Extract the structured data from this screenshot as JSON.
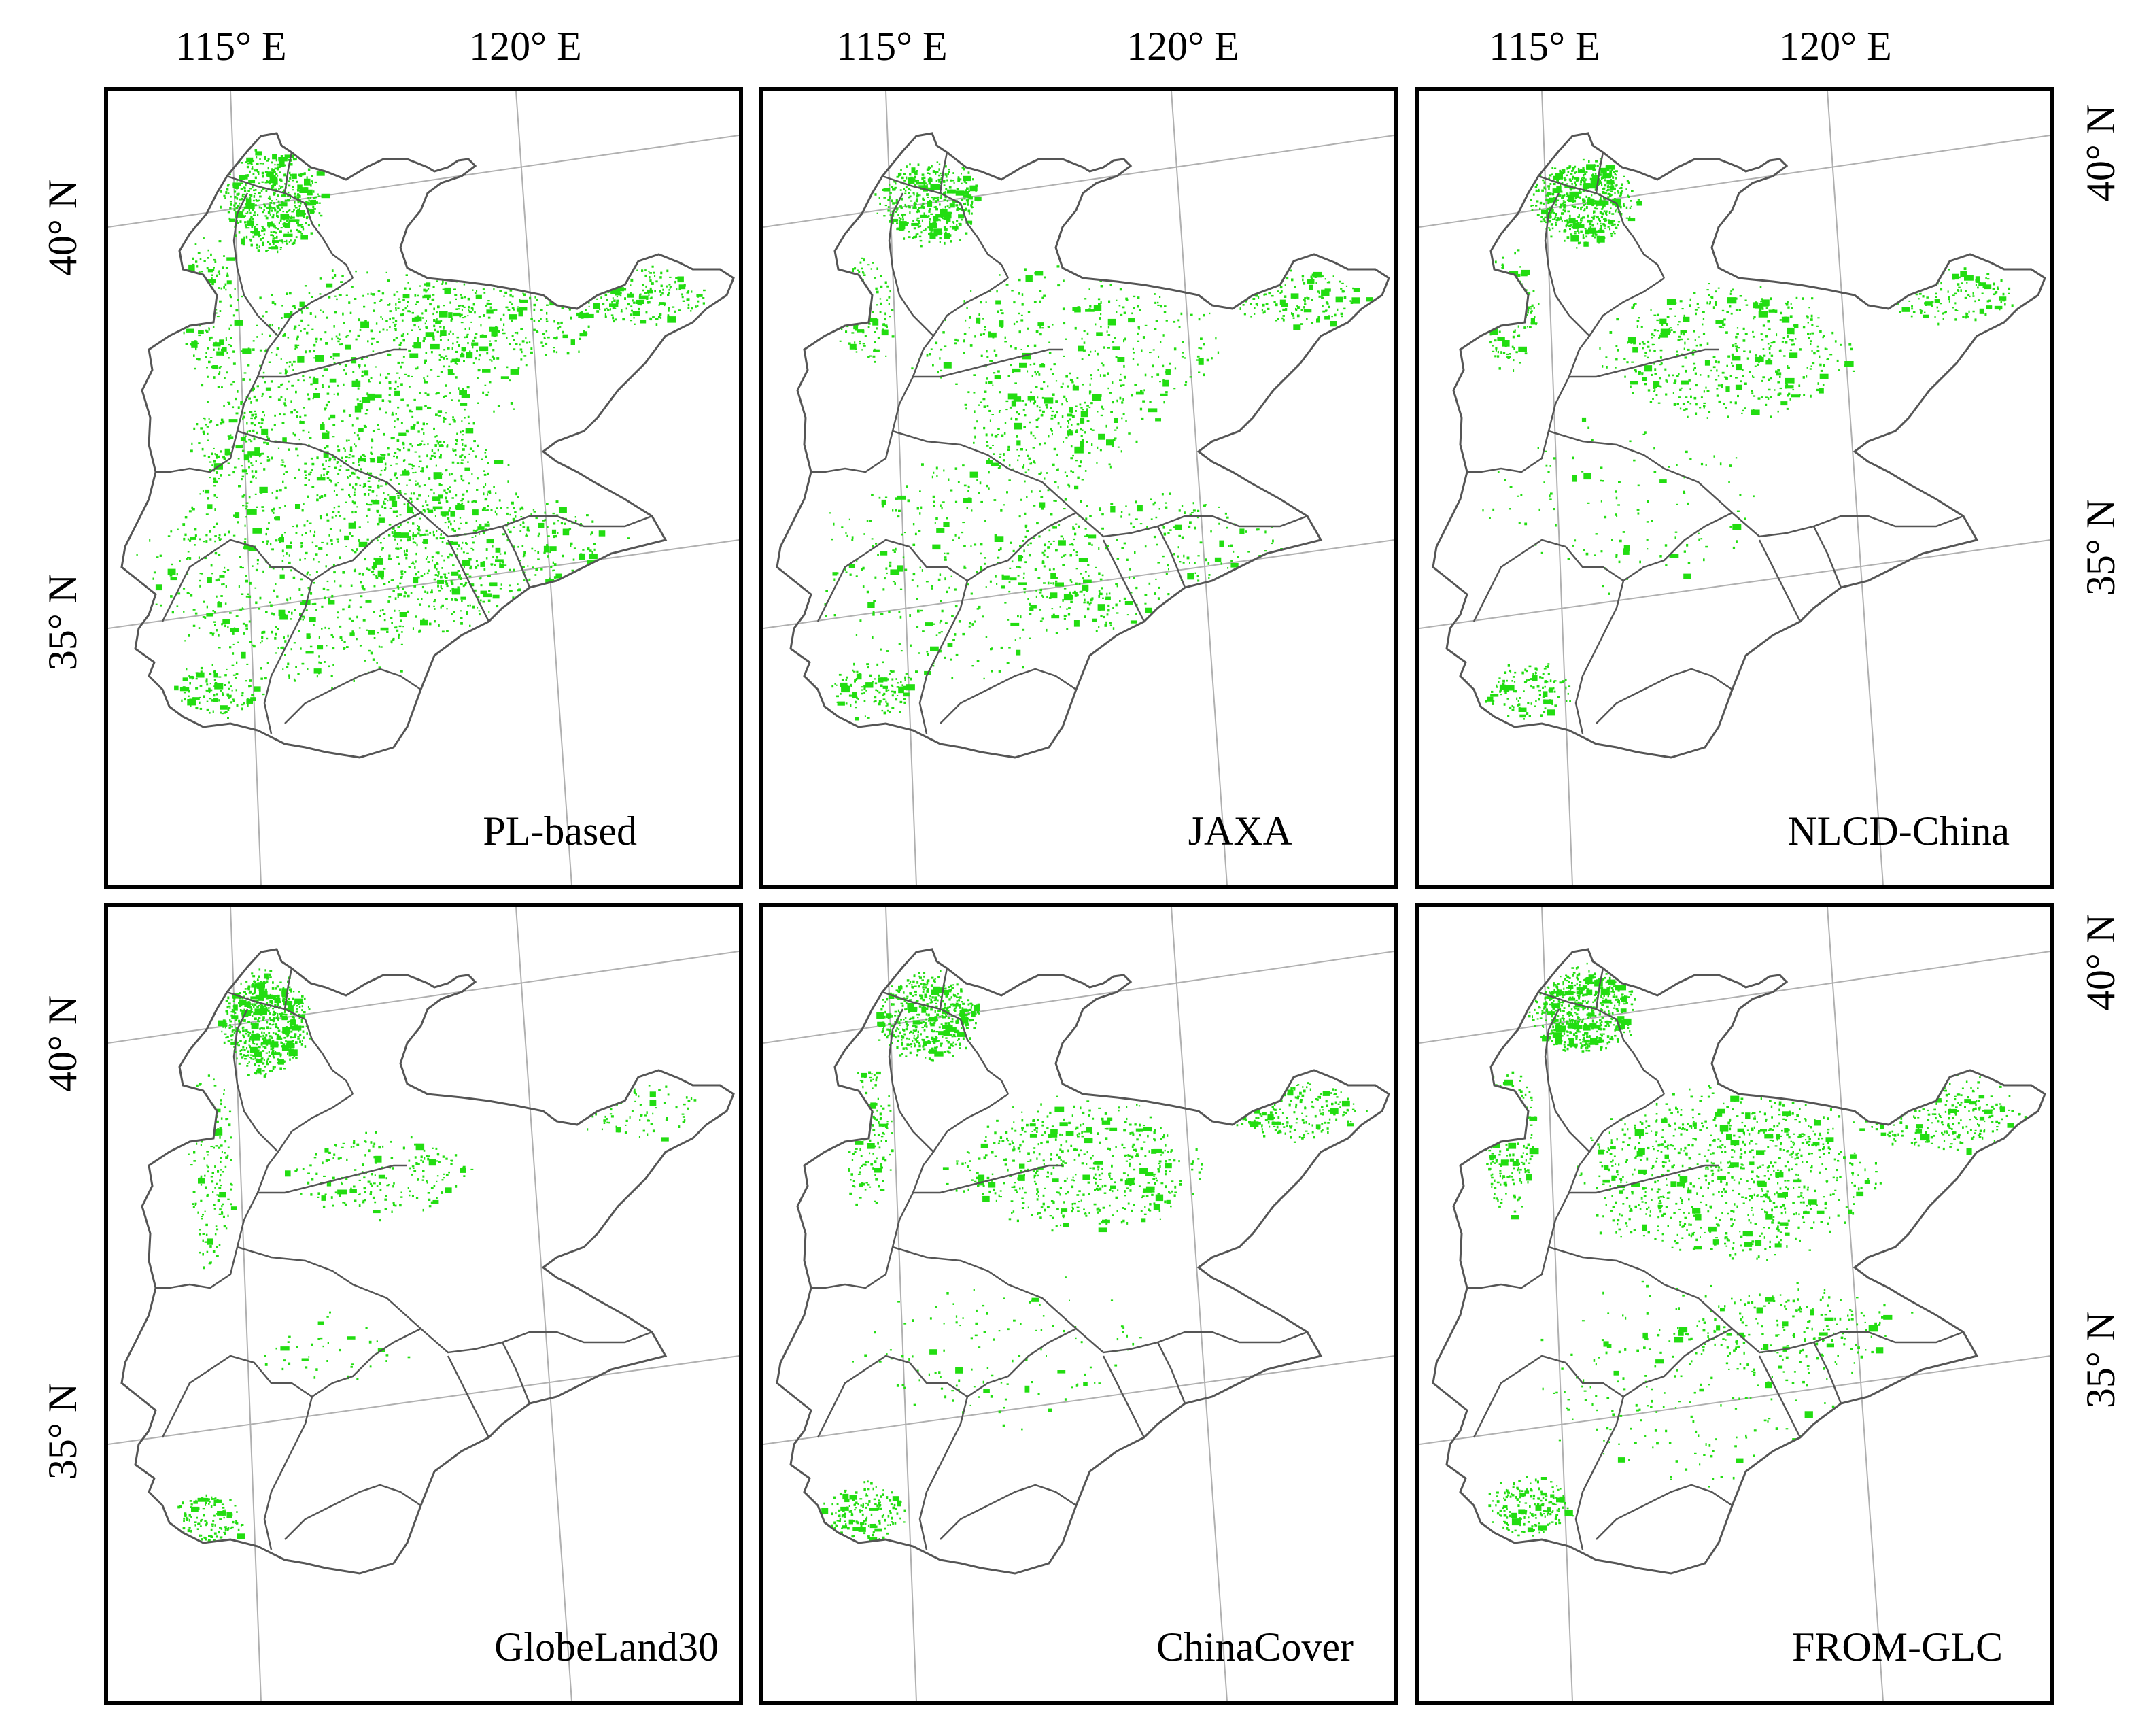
{
  "graticule": {
    "top_lon_labels": [
      "115° E",
      "120° E",
      "115° E",
      "120° E",
      "115° E",
      "120° E"
    ],
    "left_lat_labels": [
      "40° N",
      "35° N",
      "40° N",
      "35° N"
    ],
    "right_lat_labels": [
      "40° N",
      "35° N",
      "40° N",
      "35° N"
    ]
  },
  "panels": [
    {
      "title": "PL-based"
    },
    {
      "title": "JAXA"
    },
    {
      "title": "NLCD-China"
    },
    {
      "title": "GlobeLand30"
    },
    {
      "title": "ChinaCover"
    },
    {
      "title": "FROM-GLC"
    }
  ],
  "colors": {
    "cover": "#22dd11",
    "boundary": "#555555",
    "grid": "#b0b0b0",
    "frame": "#000000"
  }
}
